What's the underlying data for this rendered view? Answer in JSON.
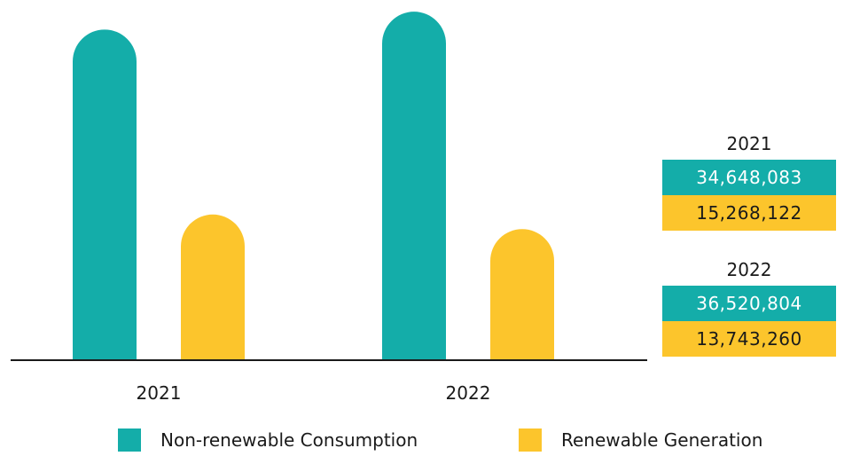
{
  "colors": {
    "non_renewable": "#14ADA9",
    "renewable": "#FCC52C",
    "axis": "#1a1a1a"
  },
  "chart_data": {
    "type": "bar",
    "categories": [
      "2021",
      "2022"
    ],
    "series": [
      {
        "name": "Non-renewable Consumption",
        "values": [
          34648083,
          36520804
        ],
        "color": "#14ADA9"
      },
      {
        "name": "Renewable Generation",
        "values": [
          15268122,
          13743260
        ],
        "color": "#FCC52C"
      }
    ],
    "title": "",
    "xlabel": "",
    "ylabel": "",
    "ylim": [
      0,
      37000000
    ],
    "grid": false,
    "legend": "bottom",
    "bar_style": "rounded-top"
  },
  "value_boxes": [
    {
      "year": "2021",
      "non_renewable": "34,648,083",
      "renewable": "15,268,122"
    },
    {
      "year": "2022",
      "non_renewable": "36,520,804",
      "renewable": "13,743,260"
    }
  ],
  "legend": {
    "items": [
      {
        "label": "Non-renewable Consumption",
        "color": "#14ADA9"
      },
      {
        "label": "Renewable Generation",
        "color": "#FCC52C"
      }
    ]
  }
}
